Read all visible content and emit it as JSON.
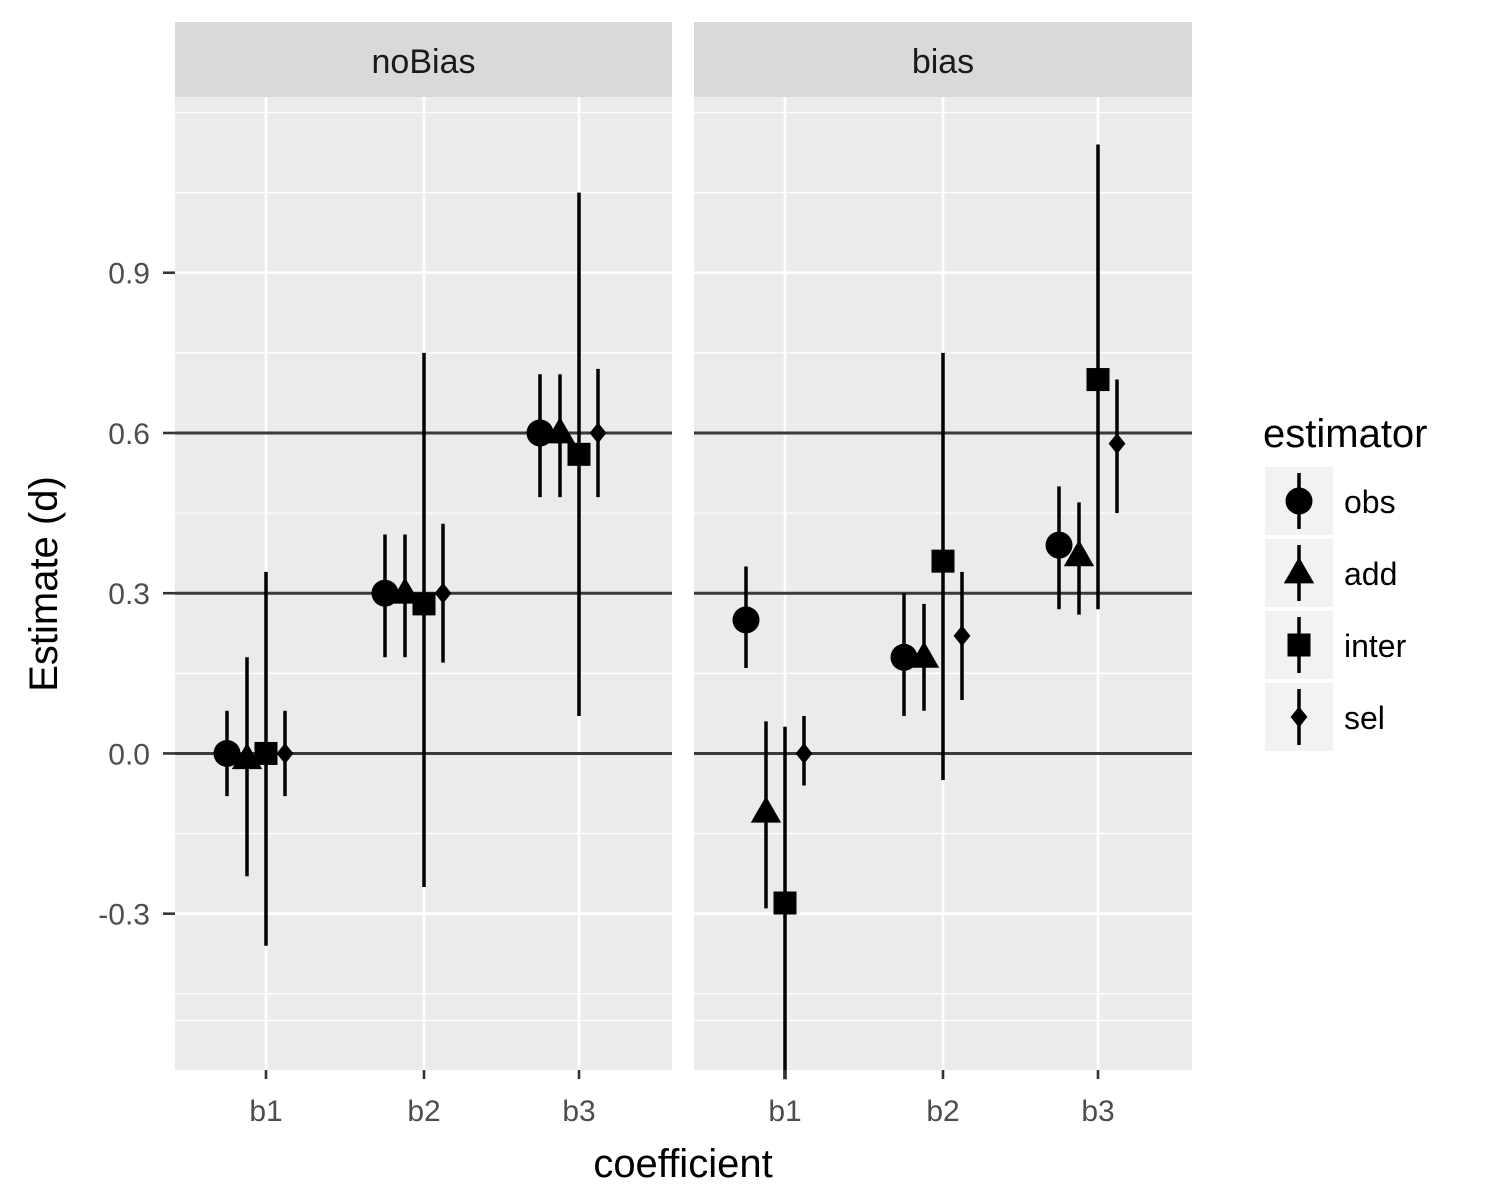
{
  "chart_data": {
    "type": "pointrange",
    "xlabel": "coefficient",
    "ylabel": "Estimate (d)",
    "ylim": [
      -0.5,
      1.2
    ],
    "y_ticks": [
      {
        "value": -0.3,
        "label": "-0.3"
      },
      {
        "value": 0.0,
        "label": "0.0"
      },
      {
        "value": 0.3,
        "label": "0.3"
      },
      {
        "value": 0.6,
        "label": "0.6"
      },
      {
        "value": 0.9,
        "label": "0.9"
      }
    ],
    "reference_lines": [
      0.0,
      0.3,
      0.6
    ],
    "categories": [
      "b1",
      "b2",
      "b3"
    ],
    "legend": {
      "title": "estimator",
      "position": "right",
      "items": [
        {
          "name": "obs",
          "shape": "circle"
        },
        {
          "name": "add",
          "shape": "triangle"
        },
        {
          "name": "inter",
          "shape": "square"
        },
        {
          "name": "sel",
          "shape": "diamond"
        }
      ]
    },
    "panels": [
      {
        "label": "noBias",
        "series": [
          {
            "name": "obs",
            "points": [
              {
                "x": "b1",
                "y": 0.0,
                "lo": -0.08,
                "hi": 0.08
              },
              {
                "x": "b2",
                "y": 0.3,
                "lo": 0.18,
                "hi": 0.41
              },
              {
                "x": "b3",
                "y": 0.6,
                "lo": 0.48,
                "hi": 0.71
              }
            ]
          },
          {
            "name": "add",
            "points": [
              {
                "x": "b1",
                "y": -0.01,
                "lo": -0.23,
                "hi": 0.18
              },
              {
                "x": "b2",
                "y": 0.3,
                "lo": 0.18,
                "hi": 0.41
              },
              {
                "x": "b3",
                "y": 0.6,
                "lo": 0.48,
                "hi": 0.71
              }
            ]
          },
          {
            "name": "inter",
            "points": [
              {
                "x": "b1",
                "y": 0.0,
                "lo": -0.36,
                "hi": 0.34
              },
              {
                "x": "b2",
                "y": 0.28,
                "lo": -0.25,
                "hi": 0.75
              },
              {
                "x": "b3",
                "y": 0.56,
                "lo": 0.07,
                "hi": 1.05
              }
            ]
          },
          {
            "name": "sel",
            "points": [
              {
                "x": "b1",
                "y": 0.0,
                "lo": -0.08,
                "hi": 0.08
              },
              {
                "x": "b2",
                "y": 0.3,
                "lo": 0.17,
                "hi": 0.43
              },
              {
                "x": "b3",
                "y": 0.6,
                "lo": 0.48,
                "hi": 0.72
              }
            ]
          }
        ]
      },
      {
        "label": "bias",
        "series": [
          {
            "name": "obs",
            "points": [
              {
                "x": "b1",
                "y": 0.25,
                "lo": 0.16,
                "hi": 0.35
              },
              {
                "x": "b2",
                "y": 0.18,
                "lo": 0.07,
                "hi": 0.3
              },
              {
                "x": "b3",
                "y": 0.39,
                "lo": 0.27,
                "hi": 0.5
              }
            ]
          },
          {
            "name": "add",
            "points": [
              {
                "x": "b1",
                "y": -0.11,
                "lo": -0.29,
                "hi": 0.06
              },
              {
                "x": "b2",
                "y": 0.18,
                "lo": 0.08,
                "hi": 0.28
              },
              {
                "x": "b3",
                "y": 0.37,
                "lo": 0.26,
                "hi": 0.47
              }
            ]
          },
          {
            "name": "inter",
            "points": [
              {
                "x": "b1",
                "y": -0.28,
                "lo": -0.61,
                "hi": 0.05
              },
              {
                "x": "b2",
                "y": 0.36,
                "lo": -0.05,
                "hi": 0.75
              },
              {
                "x": "b3",
                "y": 0.7,
                "lo": 0.27,
                "hi": 1.14
              }
            ]
          },
          {
            "name": "sel",
            "points": [
              {
                "x": "b1",
                "y": 0.0,
                "lo": -0.06,
                "hi": 0.07
              },
              {
                "x": "b2",
                "y": 0.22,
                "lo": 0.1,
                "hi": 0.34
              },
              {
                "x": "b3",
                "y": 0.58,
                "lo": 0.45,
                "hi": 0.7
              }
            ]
          }
        ]
      }
    ]
  }
}
